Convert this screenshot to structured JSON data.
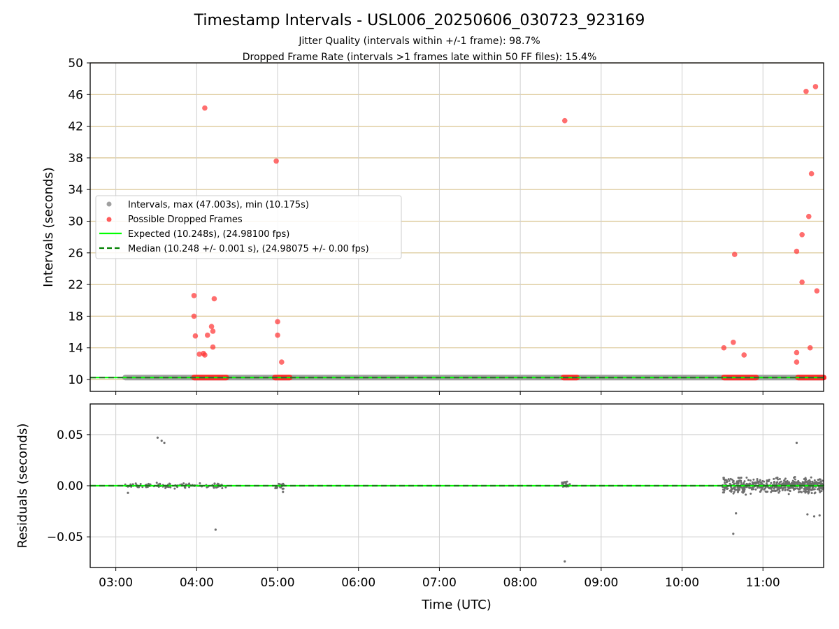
{
  "chart_data": [
    {
      "type": "scatter",
      "panel": "intervals",
      "title": "Timestamp Intervals - USL006_20250606_030723_923169",
      "subtitle_lines": [
        "Jitter Quality (intervals within +/-1 frame): 98.7%",
        "Dropped Frame Rate (intervals >1 frames late within 50 FF files): 15.4%"
      ],
      "ylabel": "Intervals (seconds)",
      "ylim": [
        8.5,
        50
      ],
      "xlim": [
        "02:41",
        "11:45"
      ],
      "y_ticks": [
        "10",
        "14",
        "18",
        "22",
        "26",
        "30",
        "34",
        "38",
        "42",
        "46",
        "50"
      ],
      "y_tick_values": [
        10,
        14,
        18,
        22,
        26,
        30,
        34,
        38,
        42,
        46,
        50
      ],
      "x_ticks": [
        "03:00",
        "04:00",
        "05:00",
        "06:00",
        "07:00",
        "08:00",
        "09:00",
        "10:00",
        "11:00"
      ],
      "grid": true,
      "legend_placement": "center-left",
      "legend": [
        {
          "label": "Intervals, max (47.003s), min (10.175s)",
          "marker": "circle",
          "color": "#a0a0a0"
        },
        {
          "label": "Possible Dropped Frames",
          "marker": "circle",
          "color": "#ff5c5c"
        },
        {
          "label": "Expected (10.248s), (24.98100 fps)",
          "marker": "line",
          "color": "#00ff00"
        },
        {
          "label": "Median (10.248 +/- 0.001 s), (24.98075 +/- 0.00 fps)",
          "marker": "dashed-line",
          "color": "#008000"
        }
      ],
      "expected_interval": 10.248,
      "median_interval": 10.248,
      "interval_band": {
        "x_start": "03:07",
        "x_end": "11:45",
        "y": 10.248
      },
      "dropped_frame_points": [
        {
          "x": "03:58",
          "y": 20.6
        },
        {
          "x": "03:58",
          "y": 18.0
        },
        {
          "x": "03:59",
          "y": 15.5
        },
        {
          "x": "04:02",
          "y": 13.2
        },
        {
          "x": "04:05",
          "y": 13.3
        },
        {
          "x": "04:06",
          "y": 13.1
        },
        {
          "x": "04:06",
          "y": 44.3
        },
        {
          "x": "04:08",
          "y": 15.6
        },
        {
          "x": "04:11",
          "y": 16.7
        },
        {
          "x": "04:12",
          "y": 16.1
        },
        {
          "x": "04:12",
          "y": 14.1
        },
        {
          "x": "04:13",
          "y": 20.2
        },
        {
          "x": "04:59",
          "y": 37.6
        },
        {
          "x": "05:00",
          "y": 17.3
        },
        {
          "x": "05:00",
          "y": 15.6
        },
        {
          "x": "05:03",
          "y": 12.2
        },
        {
          "x": "08:33",
          "y": 42.7
        },
        {
          "x": "10:31",
          "y": 14.0
        },
        {
          "x": "10:38",
          "y": 14.7
        },
        {
          "x": "10:39",
          "y": 25.8
        },
        {
          "x": "10:46",
          "y": 13.1
        },
        {
          "x": "11:25",
          "y": 26.2
        },
        {
          "x": "11:25",
          "y": 13.4
        },
        {
          "x": "11:25",
          "y": 12.2
        },
        {
          "x": "11:29",
          "y": 28.3
        },
        {
          "x": "11:29",
          "y": 22.3
        },
        {
          "x": "11:32",
          "y": 46.4
        },
        {
          "x": "11:34",
          "y": 30.6
        },
        {
          "x": "11:35",
          "y": 14.0
        },
        {
          "x": "11:36",
          "y": 36.0
        },
        {
          "x": "11:39",
          "y": 47.0
        },
        {
          "x": "11:40",
          "y": 21.2
        }
      ],
      "dropped_frame_bands": [
        {
          "x_start": "03:58",
          "x_end": "04:22",
          "y": 10.248
        },
        {
          "x_start": "04:58",
          "x_end": "05:09",
          "y": 10.248
        },
        {
          "x_start": "08:32",
          "x_end": "08:42",
          "y": 10.248
        },
        {
          "x_start": "10:31",
          "x_end": "10:55",
          "y": 10.248
        },
        {
          "x_start": "11:26",
          "x_end": "11:45",
          "y": 10.248
        }
      ]
    },
    {
      "type": "scatter",
      "panel": "residuals",
      "ylabel": "Residuals (seconds)",
      "xlabel": "Time (UTC)",
      "ylim": [
        -0.08,
        0.08
      ],
      "xlim": [
        "02:41",
        "11:45"
      ],
      "y_ticks": [
        "0.05",
        "0.00",
        "−0.05"
      ],
      "y_tick_values": [
        0.05,
        0,
        -0.05
      ],
      "x_ticks": [
        "03:00",
        "04:00",
        "05:00",
        "06:00",
        "07:00",
        "08:00",
        "09:00",
        "10:00",
        "11:00"
      ],
      "grid": true,
      "outlier_points": [
        {
          "x": "03:09",
          "y": -0.007
        },
        {
          "x": "03:31",
          "y": 0.047
        },
        {
          "x": "03:34",
          "y": 0.044
        },
        {
          "x": "03:36",
          "y": 0.042
        },
        {
          "x": "04:14",
          "y": -0.043
        },
        {
          "x": "05:04",
          "y": -0.006
        },
        {
          "x": "08:33",
          "y": -0.074
        },
        {
          "x": "10:38",
          "y": -0.047
        },
        {
          "x": "10:40",
          "y": -0.027
        },
        {
          "x": "11:25",
          "y": 0.042
        },
        {
          "x": "11:33",
          "y": -0.028
        },
        {
          "x": "11:38",
          "y": -0.03
        },
        {
          "x": "11:42",
          "y": -0.029
        }
      ],
      "noise_clusters": [
        {
          "x_start": "03:07",
          "x_end": "04:22",
          "spread": 0.003,
          "count": 110
        },
        {
          "x_start": "04:58",
          "x_end": "05:05",
          "spread": 0.004,
          "count": 22
        },
        {
          "x_start": "08:31",
          "x_end": "08:37",
          "spread": 0.005,
          "count": 20
        },
        {
          "x_start": "10:30",
          "x_end": "11:45",
          "spread": 0.009,
          "count": 520
        }
      ],
      "zero_line": 0
    }
  ]
}
